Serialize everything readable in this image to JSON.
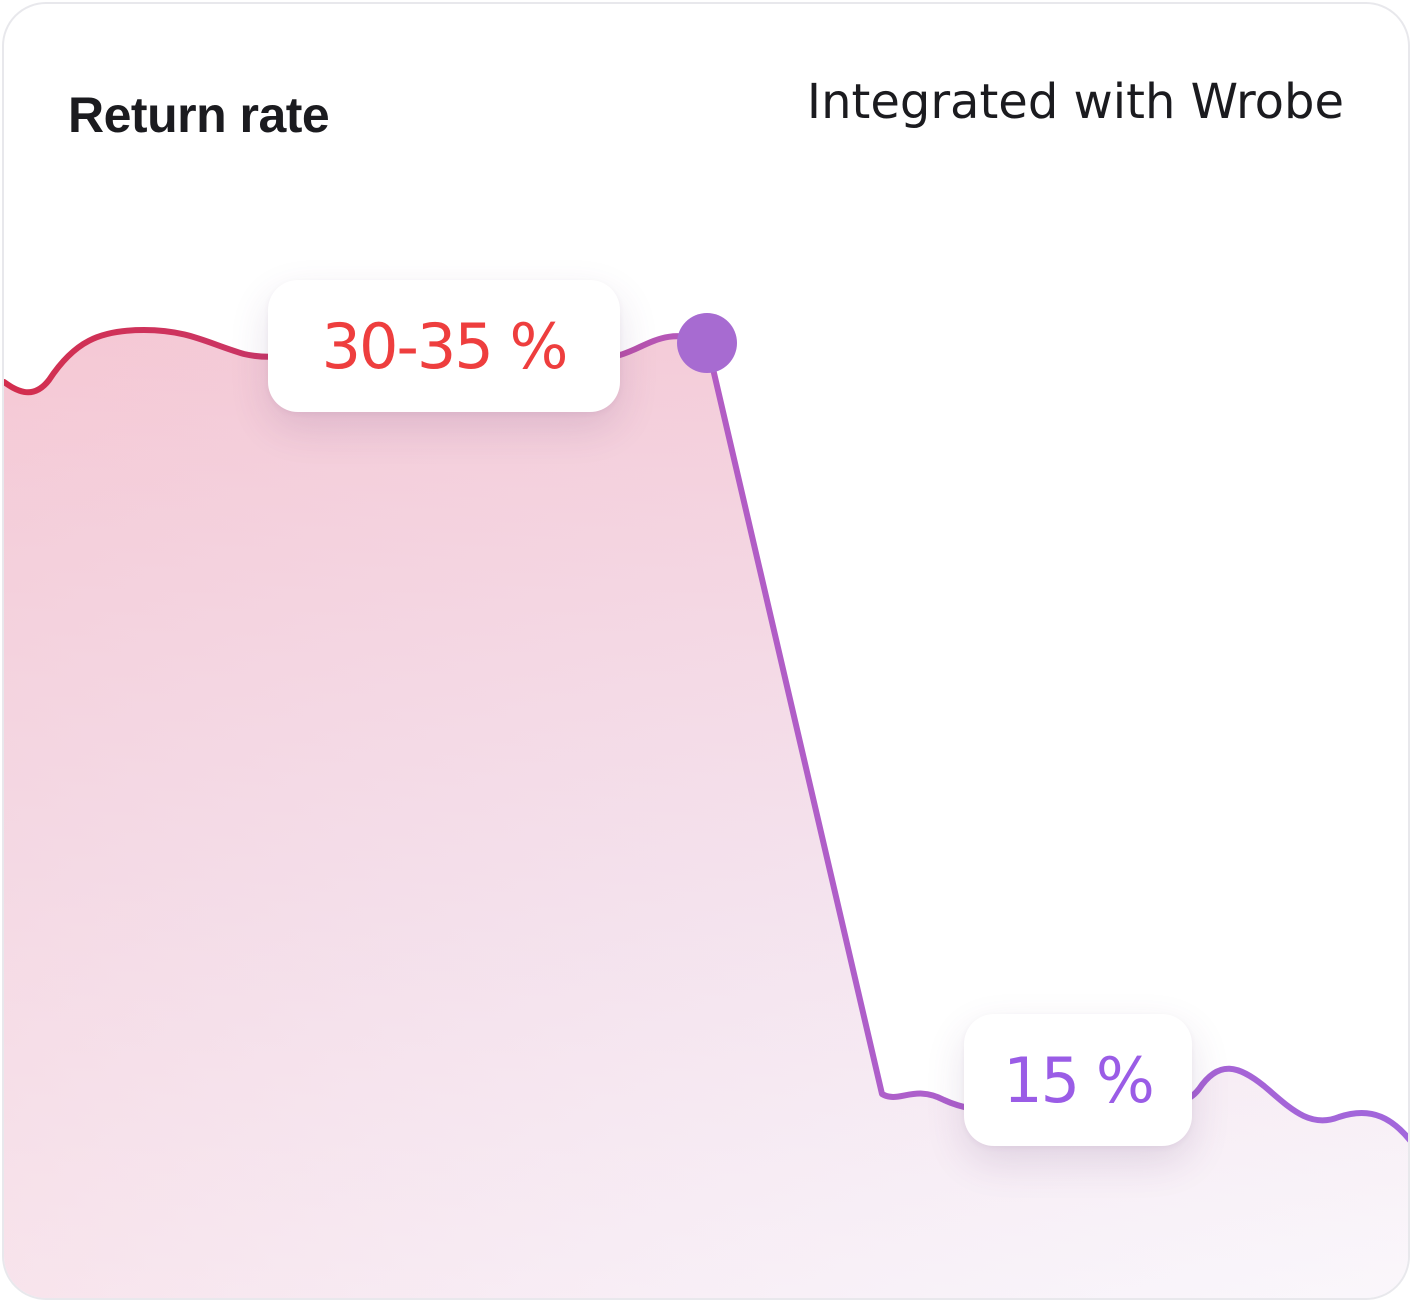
{
  "card": {
    "title": "Return rate",
    "subtitle": "Integrated with Wrobe"
  },
  "chart_data": {
    "type": "line",
    "description_axes": "no visible axes, ticks or gridlines",
    "grid": false,
    "legend": "none",
    "annotations": [
      {
        "text": "30-35 %",
        "color": "#ee3e3e"
      },
      {
        "text": "15 %",
        "color": "#9a5ce6"
      }
    ],
    "line_gradient": [
      "#d8324c",
      "#a264d8"
    ],
    "fill_gradient": [
      "#f5c6d2",
      "#f7f2f9"
    ],
    "marker_color": "#a76bd1"
  }
}
